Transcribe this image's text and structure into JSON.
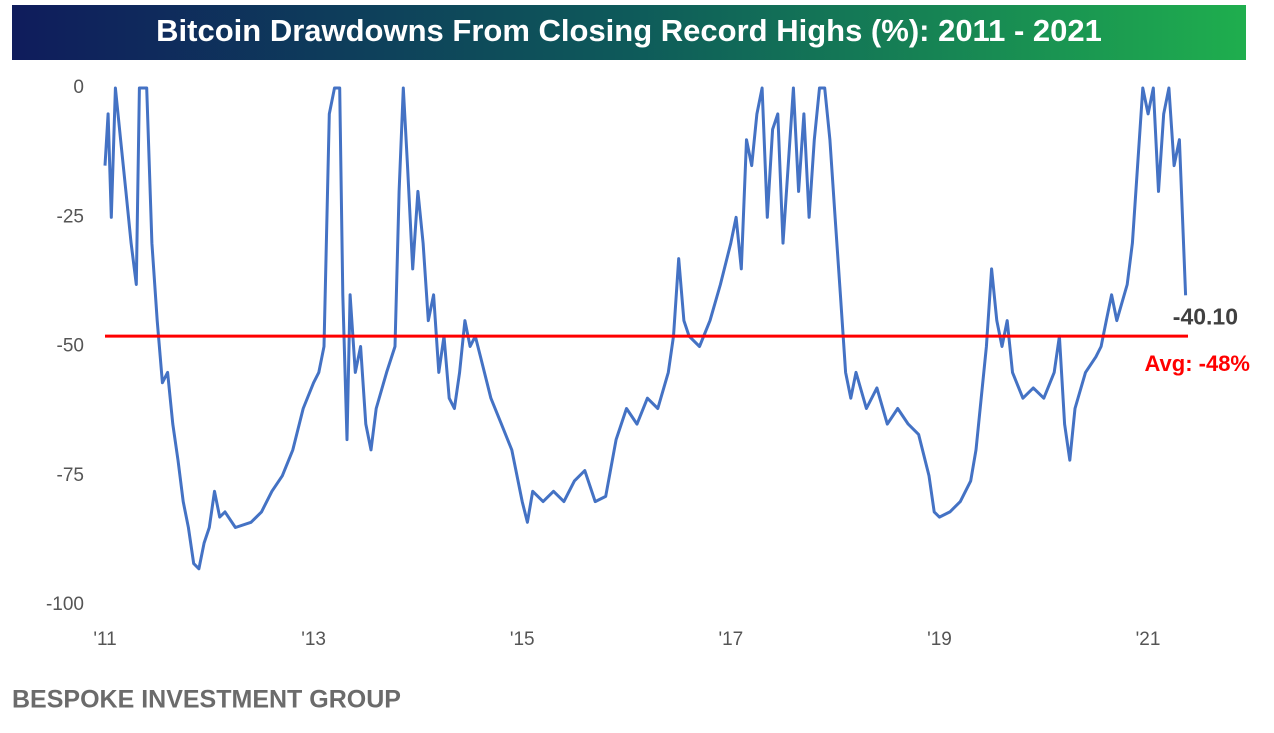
{
  "chart_data": {
    "type": "line",
    "title": "Bitcoin Drawdowns From Closing Record Highs (%): 2011 - 2021",
    "source": "BESPOKE INVESTMENT GROUP",
    "xlim": [
      2011,
      2021.45
    ],
    "xticks": [
      {
        "value": 2011,
        "label": "'11"
      },
      {
        "value": 2013,
        "label": "'13"
      },
      {
        "value": 2015,
        "label": "'15"
      },
      {
        "value": 2017,
        "label": "'17"
      },
      {
        "value": 2019,
        "label": "'19"
      },
      {
        "value": 2021,
        "label": "'21"
      }
    ],
    "ylim": [
      -100,
      0
    ],
    "yticks": [
      0,
      -25,
      -50,
      -75,
      -100
    ],
    "x": [
      2011.0,
      2011.03,
      2011.06,
      2011.1,
      2011.15,
      2011.2,
      2011.25,
      2011.3,
      2011.33,
      2011.4,
      2011.45,
      2011.5,
      2011.55,
      2011.6,
      2011.65,
      2011.7,
      2011.75,
      2011.8,
      2011.85,
      2011.9,
      2011.95,
      2012.0,
      2012.05,
      2012.1,
      2012.15,
      2012.25,
      2012.4,
      2012.5,
      2012.6,
      2012.7,
      2012.8,
      2012.9,
      2013.0,
      2013.05,
      2013.1,
      2013.15,
      2013.2,
      2013.25,
      2013.28,
      2013.32,
      2013.35,
      2013.4,
      2013.45,
      2013.5,
      2013.55,
      2013.6,
      2013.7,
      2013.78,
      2013.82,
      2013.86,
      2013.9,
      2013.95,
      2014.0,
      2014.05,
      2014.1,
      2014.15,
      2014.2,
      2014.25,
      2014.3,
      2014.35,
      2014.4,
      2014.45,
      2014.5,
      2014.55,
      2014.6,
      2014.7,
      2014.8,
      2014.9,
      2015.0,
      2015.05,
      2015.1,
      2015.2,
      2015.3,
      2015.4,
      2015.5,
      2015.6,
      2015.7,
      2015.8,
      2015.9,
      2016.0,
      2016.1,
      2016.2,
      2016.3,
      2016.4,
      2016.45,
      2016.5,
      2016.55,
      2016.6,
      2016.7,
      2016.8,
      2016.9,
      2017.0,
      2017.05,
      2017.1,
      2017.15,
      2017.2,
      2017.25,
      2017.3,
      2017.35,
      2017.4,
      2017.45,
      2017.5,
      2017.55,
      2017.6,
      2017.65,
      2017.7,
      2017.75,
      2017.8,
      2017.85,
      2017.9,
      2017.95,
      2018.0,
      2018.05,
      2018.1,
      2018.15,
      2018.2,
      2018.3,
      2018.4,
      2018.5,
      2018.6,
      2018.7,
      2018.8,
      2018.9,
      2018.95,
      2019.0,
      2019.1,
      2019.2,
      2019.3,
      2019.35,
      2019.4,
      2019.45,
      2019.5,
      2019.55,
      2019.6,
      2019.65,
      2019.7,
      2019.8,
      2019.9,
      2020.0,
      2020.1,
      2020.15,
      2020.2,
      2020.25,
      2020.3,
      2020.4,
      2020.5,
      2020.55,
      2020.6,
      2020.65,
      2020.7,
      2020.8,
      2020.85,
      2020.9,
      2020.95,
      2021.0,
      2021.05,
      2021.1,
      2021.15,
      2021.2,
      2021.25,
      2021.3,
      2021.33,
      2021.36
    ],
    "series": [
      {
        "color": "#4472c4",
        "values": [
          -15,
          -5,
          -25,
          0,
          -10,
          -20,
          -30,
          -38,
          0,
          0,
          -30,
          -45,
          -57,
          -55,
          -65,
          -72,
          -80,
          -85,
          -92,
          -93,
          -88,
          -85,
          -78,
          -83,
          -82,
          -85,
          -84,
          -82,
          -78,
          -75,
          -70,
          -62,
          -57,
          -55,
          -50,
          -5,
          0,
          0,
          -40,
          -68,
          -40,
          -55,
          -50,
          -65,
          -70,
          -62,
          -55,
          -50,
          -20,
          0,
          -15,
          -35,
          -20,
          -30,
          -45,
          -40,
          -55,
          -48,
          -60,
          -62,
          -55,
          -45,
          -50,
          -48,
          -52,
          -60,
          -65,
          -70,
          -80,
          -84,
          -78,
          -80,
          -78,
          -80,
          -76,
          -74,
          -80,
          -79,
          -68,
          -62,
          -65,
          -60,
          -62,
          -55,
          -48,
          -33,
          -45,
          -48,
          -50,
          -45,
          -38,
          -30,
          -25,
          -35,
          -10,
          -15,
          -5,
          0,
          -25,
          -8,
          -5,
          -30,
          -15,
          0,
          -20,
          -5,
          -25,
          -10,
          0,
          0,
          -10,
          -25,
          -40,
          -55,
          -60,
          -55,
          -62,
          -58,
          -65,
          -62,
          -65,
          -67,
          -75,
          -82,
          -83,
          -82,
          -80,
          -76,
          -70,
          -60,
          -50,
          -35,
          -45,
          -50,
          -45,
          -55,
          -60,
          -58,
          -60,
          -55,
          -48,
          -65,
          -72,
          -62,
          -55,
          -52,
          -50,
          -45,
          -40,
          -45,
          -38,
          -30,
          -15,
          0,
          -5,
          0,
          -20,
          -5,
          0,
          -15,
          -10,
          -25,
          -40.1
        ]
      }
    ],
    "end_label": {
      "value": -40.1,
      "label": "-40.10"
    },
    "avg_line": {
      "value": -48,
      "label": "Avg: -48%",
      "color": "#ff0000"
    }
  }
}
